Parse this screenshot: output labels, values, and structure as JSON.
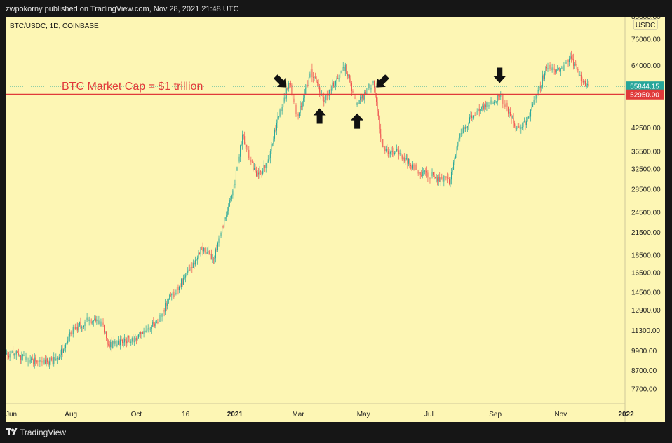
{
  "header": {
    "publisher_line": "zwpokorny published on TradingView.com, Nov 28, 2021 21:48 UTC"
  },
  "footer": {
    "brand": "TradingView"
  },
  "colors": {
    "background": "#fdf6b4",
    "up_candle": "#26a69a",
    "down_candle": "#ef5350",
    "resistance_line": "#e03a3a",
    "last_price_badge": "#26a69a",
    "level_badge": "#e03a3a",
    "arrow": "#111111"
  },
  "chart_data": {
    "type": "candlestick",
    "symbol": "BTC/USDC, 1D, COINBASE",
    "currency": "USDC",
    "scale": "log",
    "ylim": [
      7000,
      88000
    ],
    "x_range": [
      "2020-06-01",
      "2021-12-31"
    ],
    "x_ticks": [
      {
        "label": "Jun",
        "date": "2020-06-01"
      },
      {
        "label": "Aug",
        "date": "2020-08-01"
      },
      {
        "label": "Oct",
        "date": "2020-10-01"
      },
      {
        "label": "16",
        "date": "2020-11-16"
      },
      {
        "label": "2021",
        "date": "2021-01-01"
      },
      {
        "label": "Mar",
        "date": "2021-03-01"
      },
      {
        "label": "May",
        "date": "2021-05-01"
      },
      {
        "label": "Jul",
        "date": "2021-07-01"
      },
      {
        "label": "Sep",
        "date": "2021-09-01"
      },
      {
        "label": "Nov",
        "date": "2021-11-01"
      },
      {
        "label": "2022",
        "date": "2022-01-01"
      }
    ],
    "y_ticks": [
      "88000.00",
      "76000.00",
      "64000.00",
      "52950.00",
      "42500.00",
      "36500.00",
      "32500.00",
      "28500.00",
      "24500.00",
      "21500.00",
      "18500.00",
      "16500.00",
      "14500.00",
      "12900.00",
      "11300.00",
      "9900.00",
      "8700.00",
      "7700.00"
    ],
    "y_tick_values": [
      88000,
      76000,
      64000,
      52950,
      42500,
      36500,
      32500,
      28500,
      24500,
      21500,
      18500,
      16500,
      14500,
      12900,
      11300,
      9900,
      8700,
      7700
    ],
    "last_price": 55844.15,
    "last_price_label": "55844.15",
    "horizontal_level": 52950,
    "horizontal_level_label": "52950.00",
    "annotation": "BTC Market Cap = $1 trillion",
    "arrows": [
      {
        "date": "2021-02-13",
        "price": 57500,
        "direction": "down-right"
      },
      {
        "date": "2021-03-21",
        "price": 46000,
        "direction": "up"
      },
      {
        "date": "2021-04-25",
        "price": 44500,
        "direction": "up"
      },
      {
        "date": "2021-05-18",
        "price": 57500,
        "direction": "down-left"
      },
      {
        "date": "2021-09-05",
        "price": 60000,
        "direction": "down"
      }
    ],
    "anchors": [
      [
        "2020-06-01",
        9600
      ],
      [
        "2020-06-10",
        9750
      ],
      [
        "2020-06-20",
        9350
      ],
      [
        "2020-07-01",
        9200
      ],
      [
        "2020-07-20",
        9300
      ],
      [
        "2020-07-31",
        11200
      ],
      [
        "2020-08-17",
        12100
      ],
      [
        "2020-08-31",
        11700
      ],
      [
        "2020-09-05",
        10200
      ],
      [
        "2020-09-30",
        10800
      ],
      [
        "2020-10-20",
        11900
      ],
      [
        "2020-10-31",
        13800
      ],
      [
        "2020-11-15",
        15900
      ],
      [
        "2020-11-30",
        19200
      ],
      [
        "2020-12-12",
        18100
      ],
      [
        "2020-12-31",
        28900
      ],
      [
        "2021-01-08",
        40500
      ],
      [
        "2021-01-21",
        31000
      ],
      [
        "2021-01-31",
        33500
      ],
      [
        "2021-02-10",
        45500
      ],
      [
        "2021-02-21",
        57500
      ],
      [
        "2021-02-28",
        45500
      ],
      [
        "2021-03-13",
        61200
      ],
      [
        "2021-03-25",
        51500
      ],
      [
        "2021-04-14",
        63500
      ],
      [
        "2021-04-25",
        49000
      ],
      [
        "2021-05-10",
        58000
      ],
      [
        "2021-05-19",
        37000
      ],
      [
        "2021-05-31",
        36500
      ],
      [
        "2021-06-22",
        32000
      ],
      [
        "2021-07-20",
        30000
      ],
      [
        "2021-07-31",
        41500
      ],
      [
        "2021-08-14",
        47500
      ],
      [
        "2021-09-06",
        52500
      ],
      [
        "2021-09-21",
        42500
      ],
      [
        "2021-09-30",
        43800
      ],
      [
        "2021-10-20",
        64500
      ],
      [
        "2021-10-31",
        61300
      ],
      [
        "2021-11-10",
        68500
      ],
      [
        "2021-11-20",
        58500
      ],
      [
        "2021-11-27",
        55844.15
      ]
    ]
  }
}
